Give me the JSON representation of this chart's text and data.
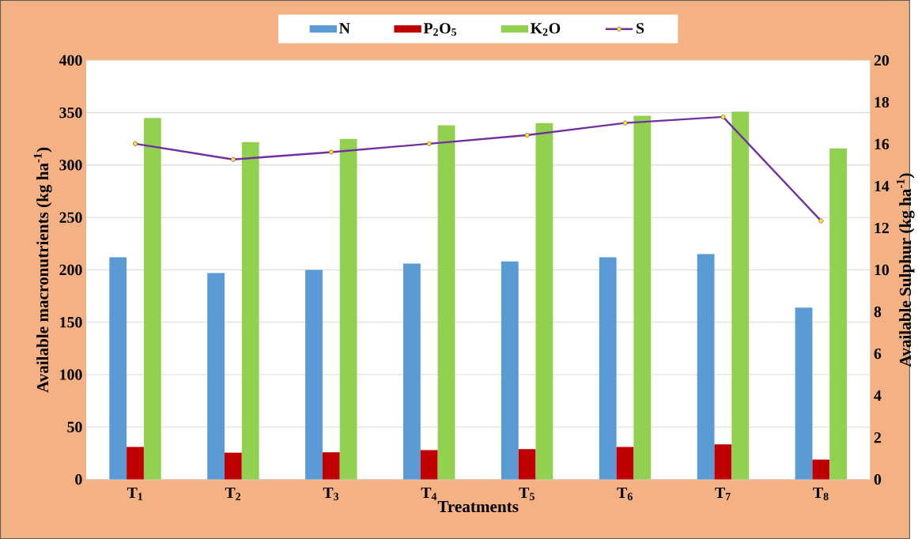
{
  "chart_data": {
    "type": "bar",
    "categories": [
      "T$_{1}$",
      "T$_{2}$",
      "T$_{3}$",
      "T$_{4}$",
      "T$_{5}$",
      "T$_{6}$",
      "T$_{7}$",
      "T$_{8}$"
    ],
    "xlabel": "Treatments",
    "ylabel": "Available macronutrients  (kg ha$^{-1}$)",
    "y2label": "Available Sulphur  (kg ha$^{-1}$)",
    "series": [
      {
        "name": "N",
        "color": "#5b9bd5",
        "values": [
          212,
          197,
          200,
          206,
          208,
          212,
          215,
          164
        ]
      },
      {
        "name": "P$_{2}$O$_{5}$",
        "color": "#c00000",
        "values": [
          31,
          25.5,
          26,
          28,
          29,
          31,
          33.5,
          19
        ]
      },
      {
        "name": "K$_{2}$O",
        "color": "#92d050",
        "values": [
          345,
          322,
          325,
          338,
          340,
          347,
          351,
          316
        ]
      },
      {
        "name": "S",
        "color": "#7030a0",
        "type": "line",
        "axis": "y2",
        "marker": "circle",
        "values": [
          16.02,
          15.27,
          15.62,
          16.02,
          16.43,
          17.01,
          17.3,
          12.34
        ]
      }
    ],
    "ylim": [
      0,
      400
    ],
    "yticks": [
      0,
      50,
      100,
      150,
      200,
      250,
      300,
      350,
      400
    ],
    "y2lim": [
      0,
      20
    ],
    "y2ticks": [
      0,
      2,
      4,
      6,
      8,
      10,
      12,
      14,
      16,
      18,
      20
    ],
    "grid": "y",
    "legend": "top"
  }
}
